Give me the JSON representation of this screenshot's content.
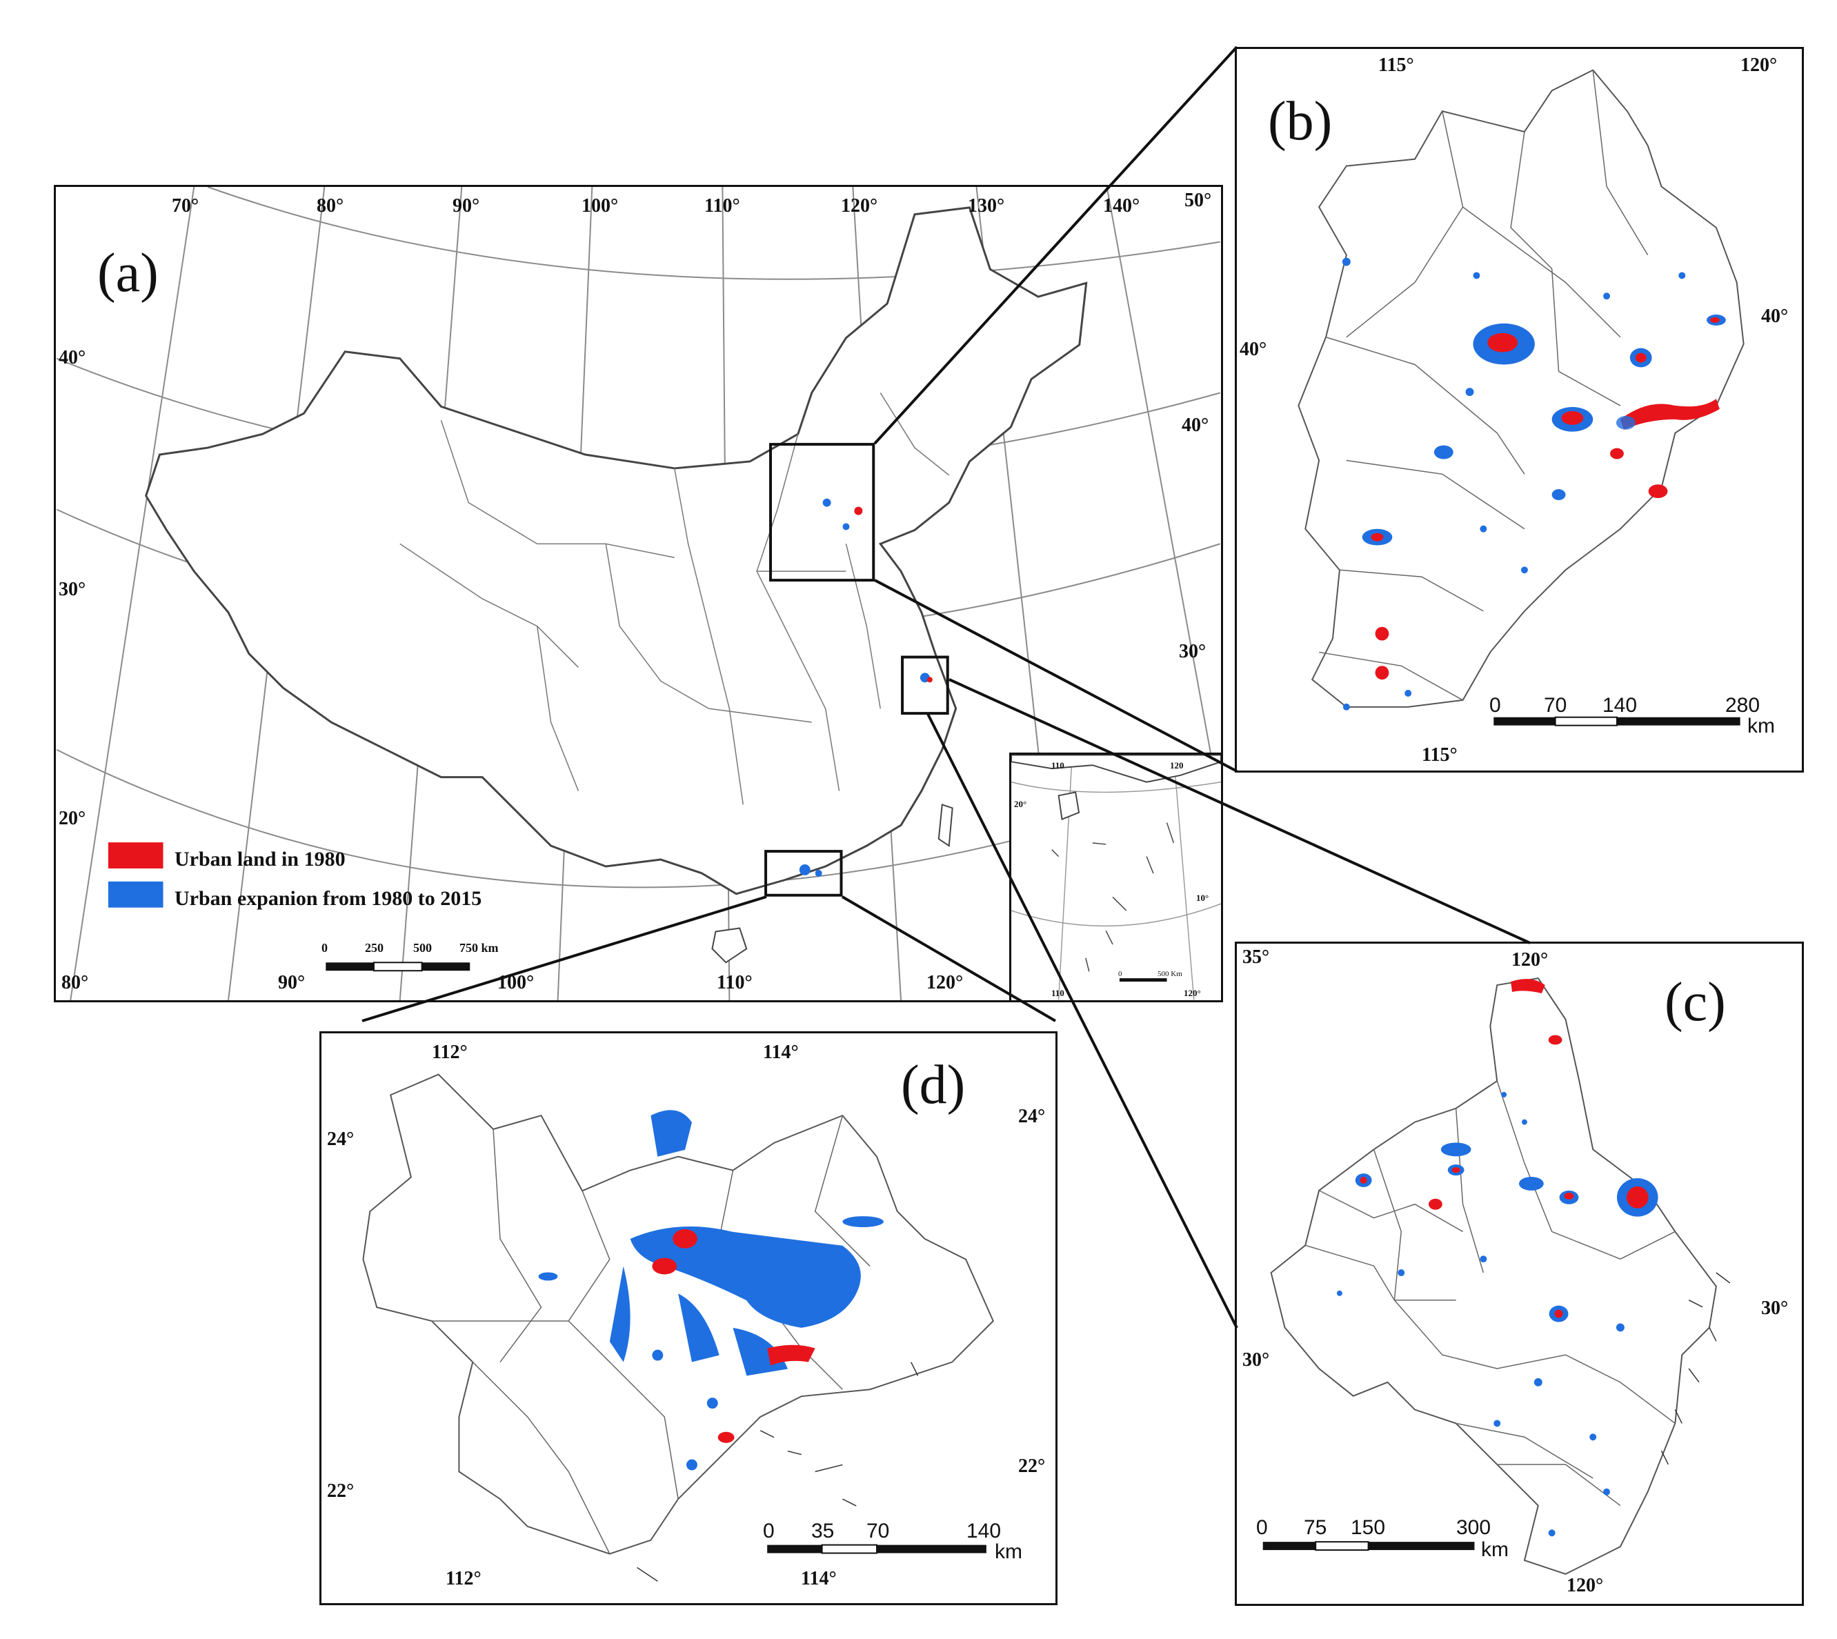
{
  "colors": {
    "urban_1980": "#e8141b",
    "urban_expansion": "#1f6fe0",
    "boundary": "#555555",
    "frame": "#111111"
  },
  "panel_a": {
    "letter": "(a)",
    "lon_top": [
      "70°",
      "80°",
      "90°",
      "100°",
      "110°",
      "120°",
      "130°",
      "140°",
      "50°"
    ],
    "lon_bottom": [
      "80°",
      "90°",
      "100°",
      "110°",
      "120°"
    ],
    "lat_left": [
      "40°",
      "30°",
      "20°"
    ],
    "lat_right": [
      "40°",
      "30°"
    ],
    "legend": [
      {
        "label": "Urban land in 1980",
        "color_key": "urban_1980"
      },
      {
        "label": "Urban expanion from 1980 to 2015",
        "color_key": "urban_expansion"
      }
    ],
    "scale_bar": {
      "ticks": [
        "0",
        "250",
        "500",
        "750 km"
      ]
    },
    "inset": {
      "labels": [
        "110",
        "120",
        "20°",
        "10°",
        "110",
        "120°",
        "0",
        "500 Km"
      ]
    }
  },
  "panel_b": {
    "letter": "(b)",
    "lon_top": [
      "115°",
      "120°"
    ],
    "lon_bottom": [
      "115°"
    ],
    "lat_left": [
      "40°"
    ],
    "lat_right": [
      "40°"
    ],
    "scale_bar": {
      "ticks": [
        "0",
        "70",
        "140",
        "280"
      ],
      "unit": "km"
    }
  },
  "panel_c": {
    "letter": "(c)",
    "lon_top": [
      "120°"
    ],
    "lon_bottom": [
      "120°"
    ],
    "lat_left": [
      "35°",
      "30°"
    ],
    "lat_right": [
      "30°"
    ],
    "scale_bar": {
      "ticks": [
        "0",
        "75",
        "150",
        "300"
      ],
      "unit": "km"
    }
  },
  "panel_d": {
    "letter": "(d)",
    "lon_top": [
      "112°",
      "114°"
    ],
    "lon_bottom": [
      "112°",
      "114°"
    ],
    "lat_left": [
      "24°",
      "22°"
    ],
    "lat_right": [
      "24°",
      "22°"
    ],
    "scale_bar": {
      "ticks": [
        "0",
        "35",
        "70",
        "140"
      ],
      "unit": "km"
    }
  }
}
